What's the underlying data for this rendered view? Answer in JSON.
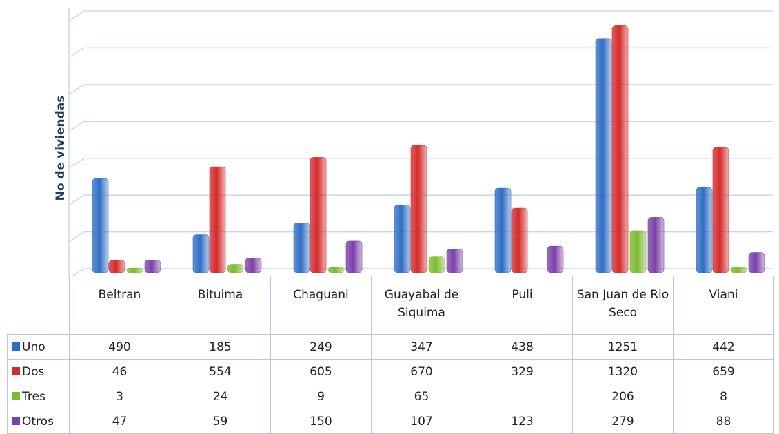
{
  "chart_data": {
    "type": "bar",
    "y_label": "No de viviendas",
    "categories": [
      "Beltran",
      "Bituima",
      "Chaguani",
      "Guayabal de Siquima",
      "Puli",
      "San Juan de Rio Seco",
      "Viani"
    ],
    "series": [
      {
        "name": "Uno",
        "color": "#2f6ec5",
        "values": [
          490,
          185,
          249,
          347,
          438,
          1251,
          442
        ]
      },
      {
        "name": "Dos",
        "color": "#d42a2a",
        "values": [
          46,
          554,
          605,
          670,
          329,
          1320,
          659
        ]
      },
      {
        "name": "Tres",
        "color": "#7cba2e",
        "values": [
          3,
          24,
          9,
          65,
          null,
          206,
          8
        ]
      },
      {
        "name": "Otros",
        "color": "#7b40a8",
        "values": [
          47,
          59,
          150,
          107,
          123,
          279,
          88
        ]
      }
    ],
    "ylim": [
      0,
      1400
    ],
    "yticks": [
      0,
      200,
      400,
      600,
      800,
      1000,
      1200,
      1400
    ],
    "grid": true
  }
}
